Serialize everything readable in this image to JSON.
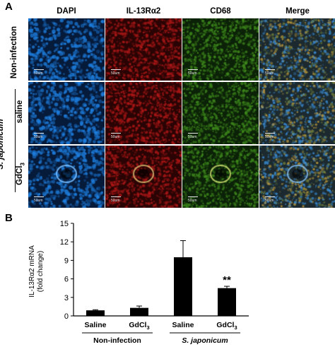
{
  "panel_a": {
    "letter": "A",
    "column_headers": [
      "DAPI",
      "IL-13Rα2",
      "CD68",
      "Merge"
    ],
    "row_labels": {
      "non_infection": "Non-infection",
      "group": "S. japonicum",
      "saline": "saline",
      "gdcl3_base": "GdCl",
      "gdcl3_sub": "3"
    },
    "scale_label": "50um"
  },
  "panel_b": {
    "letter": "B",
    "significance_label": "**"
  },
  "colors": {
    "dapi": "#1e7fe0",
    "il13": "#b01818",
    "cd68": "#3e8a1c",
    "merge": "#4a6a7a",
    "bar": "#000000"
  },
  "chart_data": {
    "type": "bar",
    "categories": [
      "Saline",
      "GdCl3",
      "Saline",
      "GdCl3"
    ],
    "category_display": [
      {
        "base": "Saline",
        "sub": ""
      },
      {
        "base": "GdCl",
        "sub": "3"
      },
      {
        "base": "Saline",
        "sub": ""
      },
      {
        "base": "GdCl",
        "sub": "3"
      }
    ],
    "groups": [
      {
        "label": "Non-infection",
        "italic": false
      },
      {
        "label": "S. japonicum",
        "italic": true
      }
    ],
    "values": [
      0.9,
      1.3,
      9.5,
      4.5
    ],
    "errors": [
      0.1,
      0.3,
      2.7,
      0.3
    ],
    "ylabel_line1": "IL-13Rα2 mRNA",
    "ylabel_line2": "(fold change)",
    "ylim": [
      0,
      15
    ],
    "yticks": [
      0,
      3,
      6,
      9,
      12,
      15
    ],
    "annotations": [
      {
        "category_index": 3,
        "text": "**"
      }
    ]
  }
}
